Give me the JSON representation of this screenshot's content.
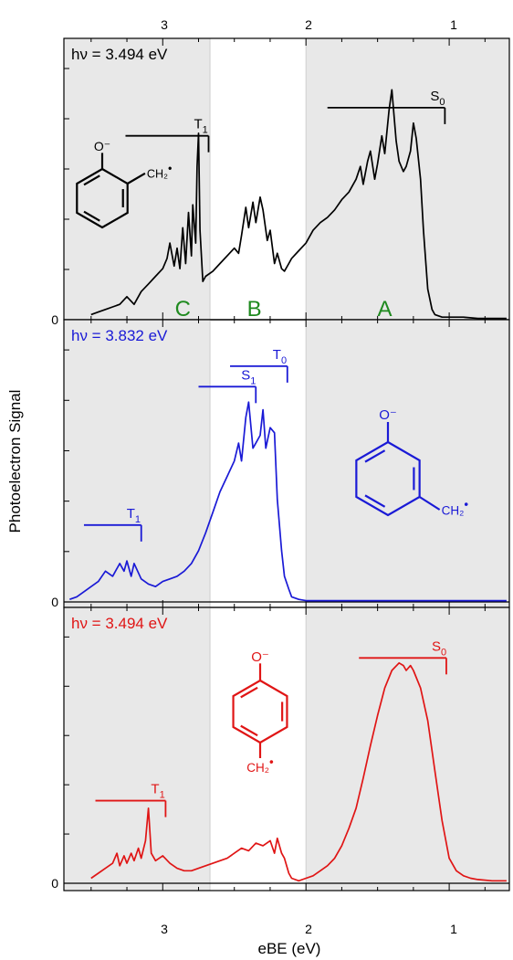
{
  "figure": {
    "ylabel": "Photoelectron Signal",
    "xlabel": "eBE (eV)",
    "x_axis": {
      "range": [
        3.69,
        0.58
      ],
      "reversed": true,
      "major_ticks": [
        3,
        2,
        1
      ],
      "minor_step": 0.25,
      "top_tick_labels": [
        "3",
        "2",
        "1"
      ],
      "bottom_tick_labels": [
        "3",
        "2",
        "1"
      ]
    },
    "shading_colors": {
      "gray": "#e8e8e8",
      "white": "#ffffff"
    },
    "shaded_regions_eV": [
      [
        3.69,
        2.67
      ],
      [
        2.0,
        0.58
      ]
    ],
    "divider_lines_eV": [
      2.67,
      2.0
    ]
  },
  "chart_data": [
    {
      "type": "line",
      "panel": "top",
      "color": "#000000",
      "hv_label": "hν = 3.494 eV",
      "zero_label": "0",
      "ylim": [
        0,
        1.08
      ],
      "region_labels": [
        {
          "text": "C",
          "x": 2.86,
          "color": "#1f8a1f"
        },
        {
          "text": "B",
          "x": 2.36,
          "color": "#1f8a1f"
        },
        {
          "text": "A",
          "x": 1.45,
          "color": "#1f8a1f"
        }
      ],
      "state_markers": [
        {
          "label": "T",
          "sub": "1",
          "x_start": 3.26,
          "x_end": 2.68,
          "y": 0.72
        },
        {
          "label": "S",
          "sub": "0",
          "x_start": 1.85,
          "x_end": 1.03,
          "y": 0.83
        }
      ],
      "molecule": {
        "type": "ortho",
        "o_label": "O⁻",
        "ch2_label": "CH₂",
        "ch2_sup": "•"
      },
      "x": [
        3.5,
        3.45,
        3.4,
        3.35,
        3.3,
        3.25,
        3.2,
        3.15,
        3.1,
        3.05,
        3.0,
        2.97,
        2.95,
        2.92,
        2.9,
        2.88,
        2.86,
        2.84,
        2.82,
        2.8,
        2.79,
        2.77,
        2.76,
        2.75,
        2.74,
        2.72,
        2.7,
        2.65,
        2.6,
        2.55,
        2.5,
        2.47,
        2.45,
        2.42,
        2.4,
        2.37,
        2.35,
        2.32,
        2.3,
        2.27,
        2.25,
        2.22,
        2.2,
        2.17,
        2.15,
        2.12,
        2.1,
        2.05,
        2.0,
        1.95,
        1.9,
        1.85,
        1.8,
        1.75,
        1.7,
        1.65,
        1.62,
        1.6,
        1.57,
        1.55,
        1.52,
        1.5,
        1.47,
        1.45,
        1.42,
        1.4,
        1.37,
        1.35,
        1.32,
        1.3,
        1.27,
        1.25,
        1.23,
        1.2,
        1.18,
        1.15,
        1.12,
        1.1,
        1.05,
        1.0,
        0.9,
        0.8,
        0.7,
        0.6
      ],
      "y": [
        0.02,
        0.03,
        0.04,
        0.05,
        0.06,
        0.09,
        0.06,
        0.11,
        0.14,
        0.17,
        0.2,
        0.24,
        0.3,
        0.21,
        0.28,
        0.2,
        0.36,
        0.22,
        0.42,
        0.25,
        0.45,
        0.3,
        0.6,
        0.73,
        0.35,
        0.15,
        0.17,
        0.19,
        0.22,
        0.25,
        0.28,
        0.26,
        0.33,
        0.44,
        0.36,
        0.46,
        0.38,
        0.48,
        0.43,
        0.31,
        0.35,
        0.22,
        0.26,
        0.2,
        0.19,
        0.22,
        0.24,
        0.27,
        0.3,
        0.35,
        0.38,
        0.4,
        0.43,
        0.47,
        0.5,
        0.55,
        0.6,
        0.53,
        0.62,
        0.66,
        0.55,
        0.61,
        0.72,
        0.65,
        0.82,
        0.9,
        0.7,
        0.62,
        0.58,
        0.6,
        0.66,
        0.77,
        0.71,
        0.55,
        0.35,
        0.12,
        0.04,
        0.02,
        0.01,
        0.01,
        0.01,
        0.005,
        0.005,
        0.005
      ]
    },
    {
      "type": "line",
      "panel": "middle",
      "color": "#1a1ad6",
      "hv_label": "hν = 3.832 eV",
      "zero_label": "0",
      "ylim": [
        0,
        1.08
      ],
      "state_markers": [
        {
          "label": "T",
          "sub": "1",
          "x_start": 3.55,
          "x_end": 3.15,
          "y": 0.3
        },
        {
          "label": "S",
          "sub": "1",
          "x_start": 2.75,
          "x_end": 2.35,
          "y": 0.84
        },
        {
          "label": "T",
          "sub": "0",
          "x_start": 2.53,
          "x_end": 2.13,
          "y": 0.92
        }
      ],
      "molecule": {
        "type": "meta",
        "o_label": "O⁻",
        "ch2_label": "CH₂",
        "ch2_sup": "•"
      },
      "x": [
        3.65,
        3.6,
        3.55,
        3.5,
        3.45,
        3.4,
        3.35,
        3.3,
        3.27,
        3.25,
        3.22,
        3.2,
        3.15,
        3.1,
        3.05,
        3.0,
        2.95,
        2.9,
        2.85,
        2.8,
        2.75,
        2.7,
        2.65,
        2.6,
        2.55,
        2.5,
        2.47,
        2.45,
        2.42,
        2.4,
        2.37,
        2.35,
        2.32,
        2.3,
        2.28,
        2.25,
        2.22,
        2.2,
        2.17,
        2.15,
        2.12,
        2.1,
        2.05,
        2.0,
        1.9,
        1.8,
        1.5,
        1.2,
        1.0,
        0.8,
        0.6
      ],
      "y": [
        0.01,
        0.02,
        0.04,
        0.06,
        0.08,
        0.12,
        0.1,
        0.15,
        0.12,
        0.16,
        0.1,
        0.15,
        0.09,
        0.07,
        0.06,
        0.08,
        0.09,
        0.1,
        0.12,
        0.15,
        0.2,
        0.27,
        0.35,
        0.43,
        0.49,
        0.55,
        0.62,
        0.55,
        0.72,
        0.78,
        0.6,
        0.62,
        0.65,
        0.75,
        0.6,
        0.68,
        0.66,
        0.4,
        0.2,
        0.1,
        0.05,
        0.02,
        0.01,
        0.005,
        0.005,
        0.005,
        0.005,
        0.005,
        0.005,
        0.005,
        0.005
      ]
    },
    {
      "type": "line",
      "panel": "bottom",
      "color": "#e01515",
      "hv_label": "hν = 3.494 eV",
      "zero_label": "0",
      "ylim": [
        0,
        1.08
      ],
      "state_markers": [
        {
          "label": "T",
          "sub": "1",
          "x_start": 3.47,
          "x_end": 2.98,
          "y": 0.33
        },
        {
          "label": "S",
          "sub": "0",
          "x_start": 1.63,
          "x_end": 1.02,
          "y": 0.9
        }
      ],
      "molecule": {
        "type": "para",
        "o_label": "O⁻",
        "ch2_label": "CH₂",
        "ch2_sup": "•"
      },
      "x": [
        3.5,
        3.45,
        3.4,
        3.35,
        3.32,
        3.3,
        3.27,
        3.25,
        3.22,
        3.2,
        3.17,
        3.15,
        3.12,
        3.1,
        3.08,
        3.05,
        3.0,
        2.95,
        2.9,
        2.85,
        2.8,
        2.75,
        2.7,
        2.65,
        2.6,
        2.55,
        2.5,
        2.45,
        2.4,
        2.35,
        2.3,
        2.25,
        2.22,
        2.2,
        2.17,
        2.15,
        2.12,
        2.1,
        2.05,
        2.0,
        1.95,
        1.9,
        1.85,
        1.8,
        1.75,
        1.7,
        1.65,
        1.6,
        1.55,
        1.5,
        1.45,
        1.4,
        1.35,
        1.32,
        1.3,
        1.27,
        1.25,
        1.2,
        1.15,
        1.1,
        1.05,
        1.0,
        0.95,
        0.9,
        0.85,
        0.8,
        0.7,
        0.6
      ],
      "y": [
        0.02,
        0.04,
        0.06,
        0.08,
        0.12,
        0.07,
        0.11,
        0.08,
        0.12,
        0.09,
        0.14,
        0.1,
        0.17,
        0.3,
        0.12,
        0.09,
        0.11,
        0.08,
        0.06,
        0.05,
        0.05,
        0.06,
        0.07,
        0.08,
        0.09,
        0.1,
        0.12,
        0.14,
        0.13,
        0.16,
        0.15,
        0.17,
        0.12,
        0.18,
        0.12,
        0.1,
        0.04,
        0.02,
        0.01,
        0.02,
        0.03,
        0.05,
        0.07,
        0.1,
        0.15,
        0.22,
        0.3,
        0.42,
        0.55,
        0.67,
        0.78,
        0.85,
        0.88,
        0.87,
        0.85,
        0.87,
        0.85,
        0.78,
        0.65,
        0.45,
        0.25,
        0.1,
        0.05,
        0.03,
        0.02,
        0.015,
        0.01,
        0.01
      ]
    }
  ]
}
